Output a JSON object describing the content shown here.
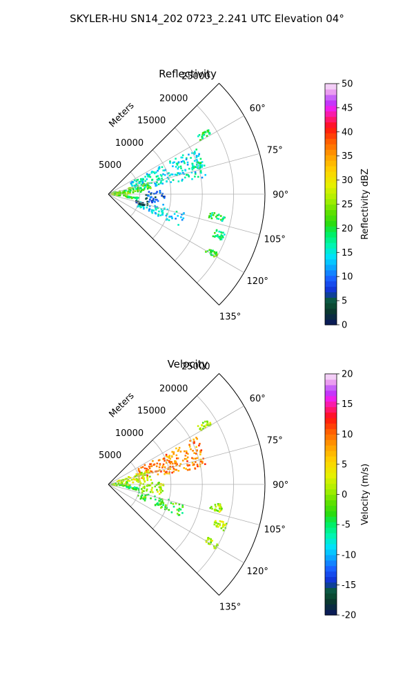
{
  "figure_title": "SKYLER-HU  SN14_202  0723_2.241 UTC Elevation 04°",
  "panels": [
    {
      "title": "Reflectivity",
      "radial_label": "Meters",
      "radial_ticks": [
        "5000",
        "10000",
        "15000",
        "20000",
        "25000"
      ],
      "angle_ticks": [
        "60°",
        "75°",
        "90°",
        "105°",
        "120°",
        "135°"
      ],
      "colorbar_label": "Reflectivity dBZ",
      "colorbar_ticks": [
        "0",
        "5",
        "10",
        "15",
        "20",
        "25",
        "30",
        "35",
        "40",
        "45",
        "50"
      ]
    },
    {
      "title": "Velocity",
      "radial_label": "Meters",
      "radial_ticks": [
        "5000",
        "10000",
        "15000",
        "20000",
        "25000"
      ],
      "angle_ticks": [
        "60°",
        "75°",
        "90°",
        "105°",
        "120°",
        "135°"
      ],
      "colorbar_label": "Velocity (m/s)",
      "colorbar_ticks": [
        "-20",
        "-15",
        "-10",
        "-5",
        "0",
        "5",
        "10",
        "15",
        "20"
      ]
    }
  ],
  "chart_data": [
    {
      "type": "heatmap",
      "subtype": "polar-sector-ppi",
      "title": "Reflectivity",
      "radial_label": "Meters",
      "r_range": [
        0,
        25000
      ],
      "theta_range_deg": [
        45,
        135
      ],
      "angular_gridlines_deg": [
        60,
        75,
        90,
        105,
        120,
        135
      ],
      "radial_gridlines_m": [
        5000,
        10000,
        15000,
        20000,
        25000
      ],
      "colorbar": {
        "label": "Reflectivity dBZ",
        "range": [
          0,
          50
        ]
      },
      "echo_regions": [
        {
          "az": [
            62,
            80
          ],
          "r": [
            4000,
            16000
          ],
          "value": 15
        },
        {
          "az": [
            74,
            86
          ],
          "r": [
            500,
            7000
          ],
          "value": 22
        },
        {
          "az": [
            84,
            97
          ],
          "r": [
            500,
            3500
          ],
          "value": 24
        },
        {
          "az": [
            86,
            101
          ],
          "r": [
            6000,
            9000
          ],
          "value": 8
        },
        {
          "az": [
            96,
            101
          ],
          "r": [
            3000,
            5000
          ],
          "value": 20
        },
        {
          "az": [
            104,
            114
          ],
          "r": [
            5000,
            13000
          ],
          "value": 14
        },
        {
          "az": [
            104,
            108
          ],
          "r": [
            4500,
            6500
          ],
          "value": 3
        },
        {
          "az": [
            70,
            74
          ],
          "r": [
            14000,
            16000
          ],
          "value": 17
        },
        {
          "az": [
            57,
            60
          ],
          "r": [
            17000,
            19000
          ],
          "value": 19
        },
        {
          "az": [
            100,
            104
          ],
          "r": [
            16500,
            19000
          ],
          "value": 19
        },
        {
          "az": [
            108,
            112
          ],
          "r": [
            18000,
            20000
          ],
          "value": 19
        },
        {
          "az": [
            118,
            121
          ],
          "r": [
            18000,
            20000
          ],
          "value": 22
        }
      ]
    },
    {
      "type": "heatmap",
      "subtype": "polar-sector-ppi",
      "title": "Velocity",
      "radial_label": "Meters",
      "r_range": [
        0,
        25000
      ],
      "theta_range_deg": [
        45,
        135
      ],
      "angular_gridlines_deg": [
        60,
        75,
        90,
        105,
        120,
        135
      ],
      "radial_gridlines_m": [
        5000,
        10000,
        15000,
        20000,
        25000
      ],
      "colorbar": {
        "label": "Velocity (m/s)",
        "range": [
          -20,
          20
        ]
      },
      "echo_regions": [
        {
          "az": [
            62,
            80
          ],
          "r": [
            5000,
            16000
          ],
          "value": 9
        },
        {
          "az": [
            70,
            86
          ],
          "r": [
            1500,
            7000
          ],
          "value": 2
        },
        {
          "az": [
            84,
            97
          ],
          "r": [
            500,
            3500
          ],
          "value": -1
        },
        {
          "az": [
            88,
            101
          ],
          "r": [
            5000,
            9000
          ],
          "value": 1
        },
        {
          "az": [
            96,
            101
          ],
          "r": [
            3000,
            5000
          ],
          "value": -4
        },
        {
          "az": [
            104,
            114
          ],
          "r": [
            5000,
            13000
          ],
          "value": -3
        },
        {
          "az": [
            57,
            60
          ],
          "r": [
            17000,
            19000
          ],
          "value": 1
        },
        {
          "az": [
            100,
            104
          ],
          "r": [
            16500,
            19000
          ],
          "value": 1
        },
        {
          "az": [
            108,
            112
          ],
          "r": [
            18000,
            20000
          ],
          "value": 1
        },
        {
          "az": [
            118,
            121
          ],
          "r": [
            18000,
            20000
          ],
          "value": 1
        }
      ]
    }
  ]
}
